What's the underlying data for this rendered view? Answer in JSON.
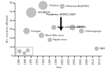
{
  "chart_data": {
    "type": "scatter",
    "marker": "bubble",
    "x_label": "Year",
    "y_label": "No. countries affected",
    "x": [
      1990.1,
      1993.9,
      2000.1,
      1988.6,
      1997.4,
      1993.4,
      1996.1,
      2003.4,
      2006.3,
      2011.2,
      1986.3,
      1987.9,
      1989.0
    ],
    "values": [
      49,
      57,
      56,
      28,
      32,
      23,
      18,
      32,
      28,
      8,
      5,
      3,
      6
    ],
    "sizes": [
      40,
      30,
      8,
      15,
      8,
      10,
      6,
      12,
      8,
      6,
      6,
      4,
      5
    ],
    "labels": [
      "HIV/AIDS",
      "Cholera",
      "Influenza A (H1N1)",
      "Dengue",
      "Avian influenza (H5N1)",
      "West Nile virus",
      "Nipah virus",
      "SARS",
      "Chikungunya",
      "MERS",
      null,
      null,
      null
    ],
    "color": "#a6a6a6",
    "annotations": [
      {
        "text": "Pandemic (H1N1) 2009",
        "x": 1999.7,
        "y": 28
      }
    ],
    "xlim": [
      1985,
      2013
    ],
    "xticks": [
      1986,
      1988,
      1990,
      1992,
      1994,
      1996,
      1998,
      2000,
      2002,
      2004,
      2006,
      2008,
      2010,
      2012
    ],
    "ylim": [
      0,
      60
    ],
    "yticks": [
      0,
      10,
      20,
      30,
      40,
      50,
      60
    ],
    "grid": false
  }
}
